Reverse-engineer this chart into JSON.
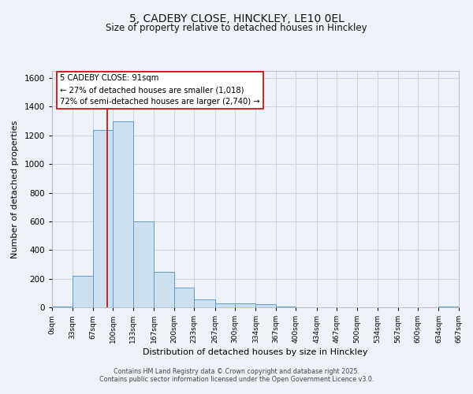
{
  "title1": "5, CADEBY CLOSE, HINCKLEY, LE10 0EL",
  "title2": "Size of property relative to detached houses in Hinckley",
  "xlabel": "Distribution of detached houses by size in Hinckley",
  "ylabel": "Number of detached properties",
  "bin_edges": [
    0,
    33,
    67,
    100,
    133,
    167,
    200,
    233,
    267,
    300,
    334,
    367,
    400,
    434,
    467,
    500,
    534,
    567,
    600,
    634,
    667
  ],
  "bin_counts": [
    5,
    220,
    1240,
    1300,
    600,
    245,
    140,
    55,
    30,
    25,
    20,
    5,
    0,
    0,
    0,
    0,
    0,
    0,
    0,
    3
  ],
  "bar_face_color": "#cce0f0",
  "bar_edge_color": "#5b9bd5",
  "vline_x": 91,
  "vline_color": "#cc0000",
  "annotation_line1": "5 CADEBY CLOSE: 91sqm",
  "annotation_line2": "← 27% of detached houses are smaller (1,018)",
  "annotation_line3": "72% of semi-detached houses are larger (2,740) →",
  "annotation_box_color": "#ffffff",
  "annotation_box_edge": "#cc0000",
  "ylim": [
    0,
    1650
  ],
  "yticks": [
    0,
    200,
    400,
    600,
    800,
    1000,
    1200,
    1400,
    1600
  ],
  "bg_color": "#eef2f8",
  "grid_color": "#c8d4e4",
  "footer1": "Contains HM Land Registry data © Crown copyright and database right 2025.",
  "footer2": "Contains public sector information licensed under the Open Government Licence v3.0.",
  "title_fontsize": 10,
  "subtitle_fontsize": 8.5,
  "axis_label_fontsize": 8,
  "tick_label_fontsize": 6.5,
  "ytick_label_fontsize": 7.5
}
